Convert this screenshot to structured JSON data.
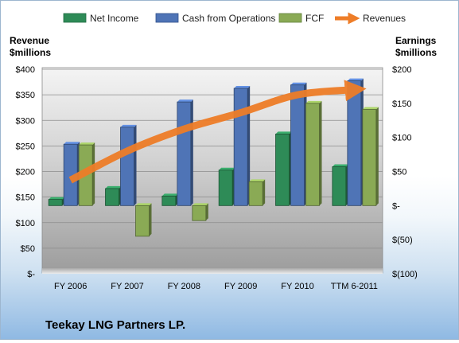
{
  "chart_data": {
    "type": "bar",
    "company": "Teekay LNG Partners LP.",
    "left_axis": {
      "title_line1": "Revenue",
      "title_line2": "$millions",
      "range": [
        0,
        400
      ],
      "ticks": [
        0,
        50,
        100,
        150,
        200,
        250,
        300,
        350,
        400
      ],
      "tick_labels": [
        "$-",
        "$50",
        "$100",
        "$150",
        "$200",
        "$250",
        "$300",
        "$350",
        "$400"
      ]
    },
    "right_axis": {
      "title_line1": "Earnings",
      "title_line2": "$millions",
      "range": [
        -100,
        200
      ],
      "ticks": [
        -100,
        -50,
        0,
        50,
        100,
        150,
        200
      ],
      "tick_labels": [
        "$(100)",
        "$(50)",
        "$-",
        "$50",
        "$100",
        "$150",
        "$200"
      ]
    },
    "categories": [
      "FY 2006",
      "FY 2007",
      "FY 2008",
      "FY 2009",
      "FY 2010",
      "TTM 6-2011"
    ],
    "series": [
      {
        "name": "Net Income",
        "type": "bar",
        "axis": "right",
        "color": "#2e8b57",
        "values": [
          9,
          25,
          14,
          52,
          105,
          57
        ]
      },
      {
        "name": "Cash from Operations",
        "type": "bar",
        "axis": "right",
        "color": "#4f74b6",
        "values": [
          90,
          115,
          152,
          172,
          177,
          183
        ]
      },
      {
        "name": "FCF",
        "type": "bar",
        "axis": "right",
        "color": "#8aaa55",
        "values": [
          89,
          -45,
          -22,
          35,
          150,
          141
        ]
      },
      {
        "name": "Revenues",
        "type": "line",
        "axis": "left",
        "color": "#ee7d28",
        "values": [
          183,
          240,
          283,
          315,
          350,
          360
        ]
      }
    ],
    "legend_position": "top",
    "grid": true
  }
}
